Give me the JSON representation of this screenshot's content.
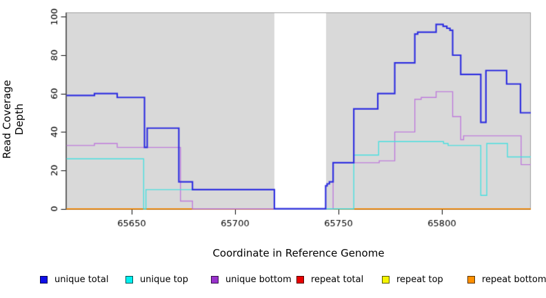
{
  "chart_data": {
    "type": "line",
    "subtype": "step-coverage",
    "title": "",
    "xlabel": "Coordinate in Reference Genome",
    "ylabel": "Read Coverage Depth",
    "xlim": [
      65618.5,
      65843
    ],
    "ylim": [
      0,
      102
    ],
    "x_ticks": [
      65650,
      65700,
      65750,
      65800
    ],
    "y_ticks": [
      0,
      20,
      40,
      60,
      80,
      100
    ],
    "grid": false,
    "legend_position": "bottom",
    "plot_background": "#d9d9d9",
    "page_background": "#ffffff",
    "box_color": "#9e9e9e",
    "axis_color": "#000000",
    "gap_region": {
      "x_start": 65719,
      "x_end": 65744,
      "color": "#ffffff"
    },
    "draw_order": [
      "repeat total",
      "repeat top",
      "repeat bottom",
      "unique bottom",
      "unique top",
      "unique total"
    ],
    "series": [
      {
        "name": "unique total",
        "color": "#3030e0",
        "line_width": 2.2,
        "steps": [
          [
            65618.5,
            59
          ],
          [
            65632,
            60
          ],
          [
            65643,
            58
          ],
          [
            65656.2,
            32
          ],
          [
            65657.5,
            42
          ],
          [
            65672.8,
            14
          ],
          [
            65679.4,
            10
          ],
          [
            65719,
            0
          ],
          [
            65743.8,
            12
          ],
          [
            65744.5,
            13
          ],
          [
            65745.6,
            14
          ],
          [
            65747.4,
            24
          ],
          [
            65757.4,
            52
          ],
          [
            65769,
            60
          ],
          [
            65777.2,
            76
          ],
          [
            65786.9,
            91
          ],
          [
            65788.3,
            92
          ],
          [
            65797.2,
            96
          ],
          [
            65800.6,
            95
          ],
          [
            65802.4,
            94
          ],
          [
            65803.9,
            93
          ],
          [
            65805.2,
            80
          ],
          [
            65809.1,
            70
          ],
          [
            65818.8,
            45
          ],
          [
            65821.3,
            72
          ],
          [
            65831.3,
            65
          ],
          [
            65838,
            50
          ]
        ]
      },
      {
        "name": "unique top",
        "color": "#48e0e0",
        "line_width": 1.4,
        "steps": [
          [
            65618.5,
            26
          ],
          [
            65655.8,
            0
          ],
          [
            65656.9,
            10
          ],
          [
            65719,
            0
          ],
          [
            65757.4,
            28
          ],
          [
            65769.4,
            35
          ],
          [
            65800.8,
            34
          ],
          [
            65803,
            33
          ],
          [
            65818.8,
            7
          ],
          [
            65821.7,
            34
          ],
          [
            65831.7,
            27
          ]
        ]
      },
      {
        "name": "unique bottom",
        "color": "#be7bdc",
        "line_width": 1.4,
        "steps": [
          [
            65618.5,
            33
          ],
          [
            65632,
            34
          ],
          [
            65643,
            32
          ],
          [
            65673.6,
            4
          ],
          [
            65679.4,
            0
          ],
          [
            65747.4,
            24
          ],
          [
            65769.7,
            25
          ],
          [
            65777.2,
            40
          ],
          [
            65786.9,
            57
          ],
          [
            65790,
            58
          ],
          [
            65797.2,
            61
          ],
          [
            65805.2,
            48
          ],
          [
            65809.1,
            36
          ],
          [
            65810.5,
            38
          ],
          [
            65838.3,
            23
          ]
        ]
      },
      {
        "name": "repeat total",
        "color": "#dd2222",
        "line_width": 1.2,
        "steps": [
          [
            65618.5,
            0
          ]
        ]
      },
      {
        "name": "repeat top",
        "color": "#eeee00",
        "line_width": 1.2,
        "steps": [
          [
            65618.5,
            0
          ]
        ]
      },
      {
        "name": "repeat bottom",
        "color": "#ff8c00",
        "line_width": 1.6,
        "steps": [
          [
            65618.5,
            0
          ]
        ]
      }
    ]
  },
  "legend": {
    "items": [
      {
        "label": "unique total",
        "color": "#0f0fe8"
      },
      {
        "label": "unique top",
        "color": "#00f0f0"
      },
      {
        "label": "unique bottom",
        "color": "#9932cc"
      },
      {
        "label": "repeat total",
        "color": "#e80000"
      },
      {
        "label": "repeat top",
        "color": "#f5f500"
      },
      {
        "label": "repeat bottom",
        "color": "#ff9000"
      }
    ]
  }
}
